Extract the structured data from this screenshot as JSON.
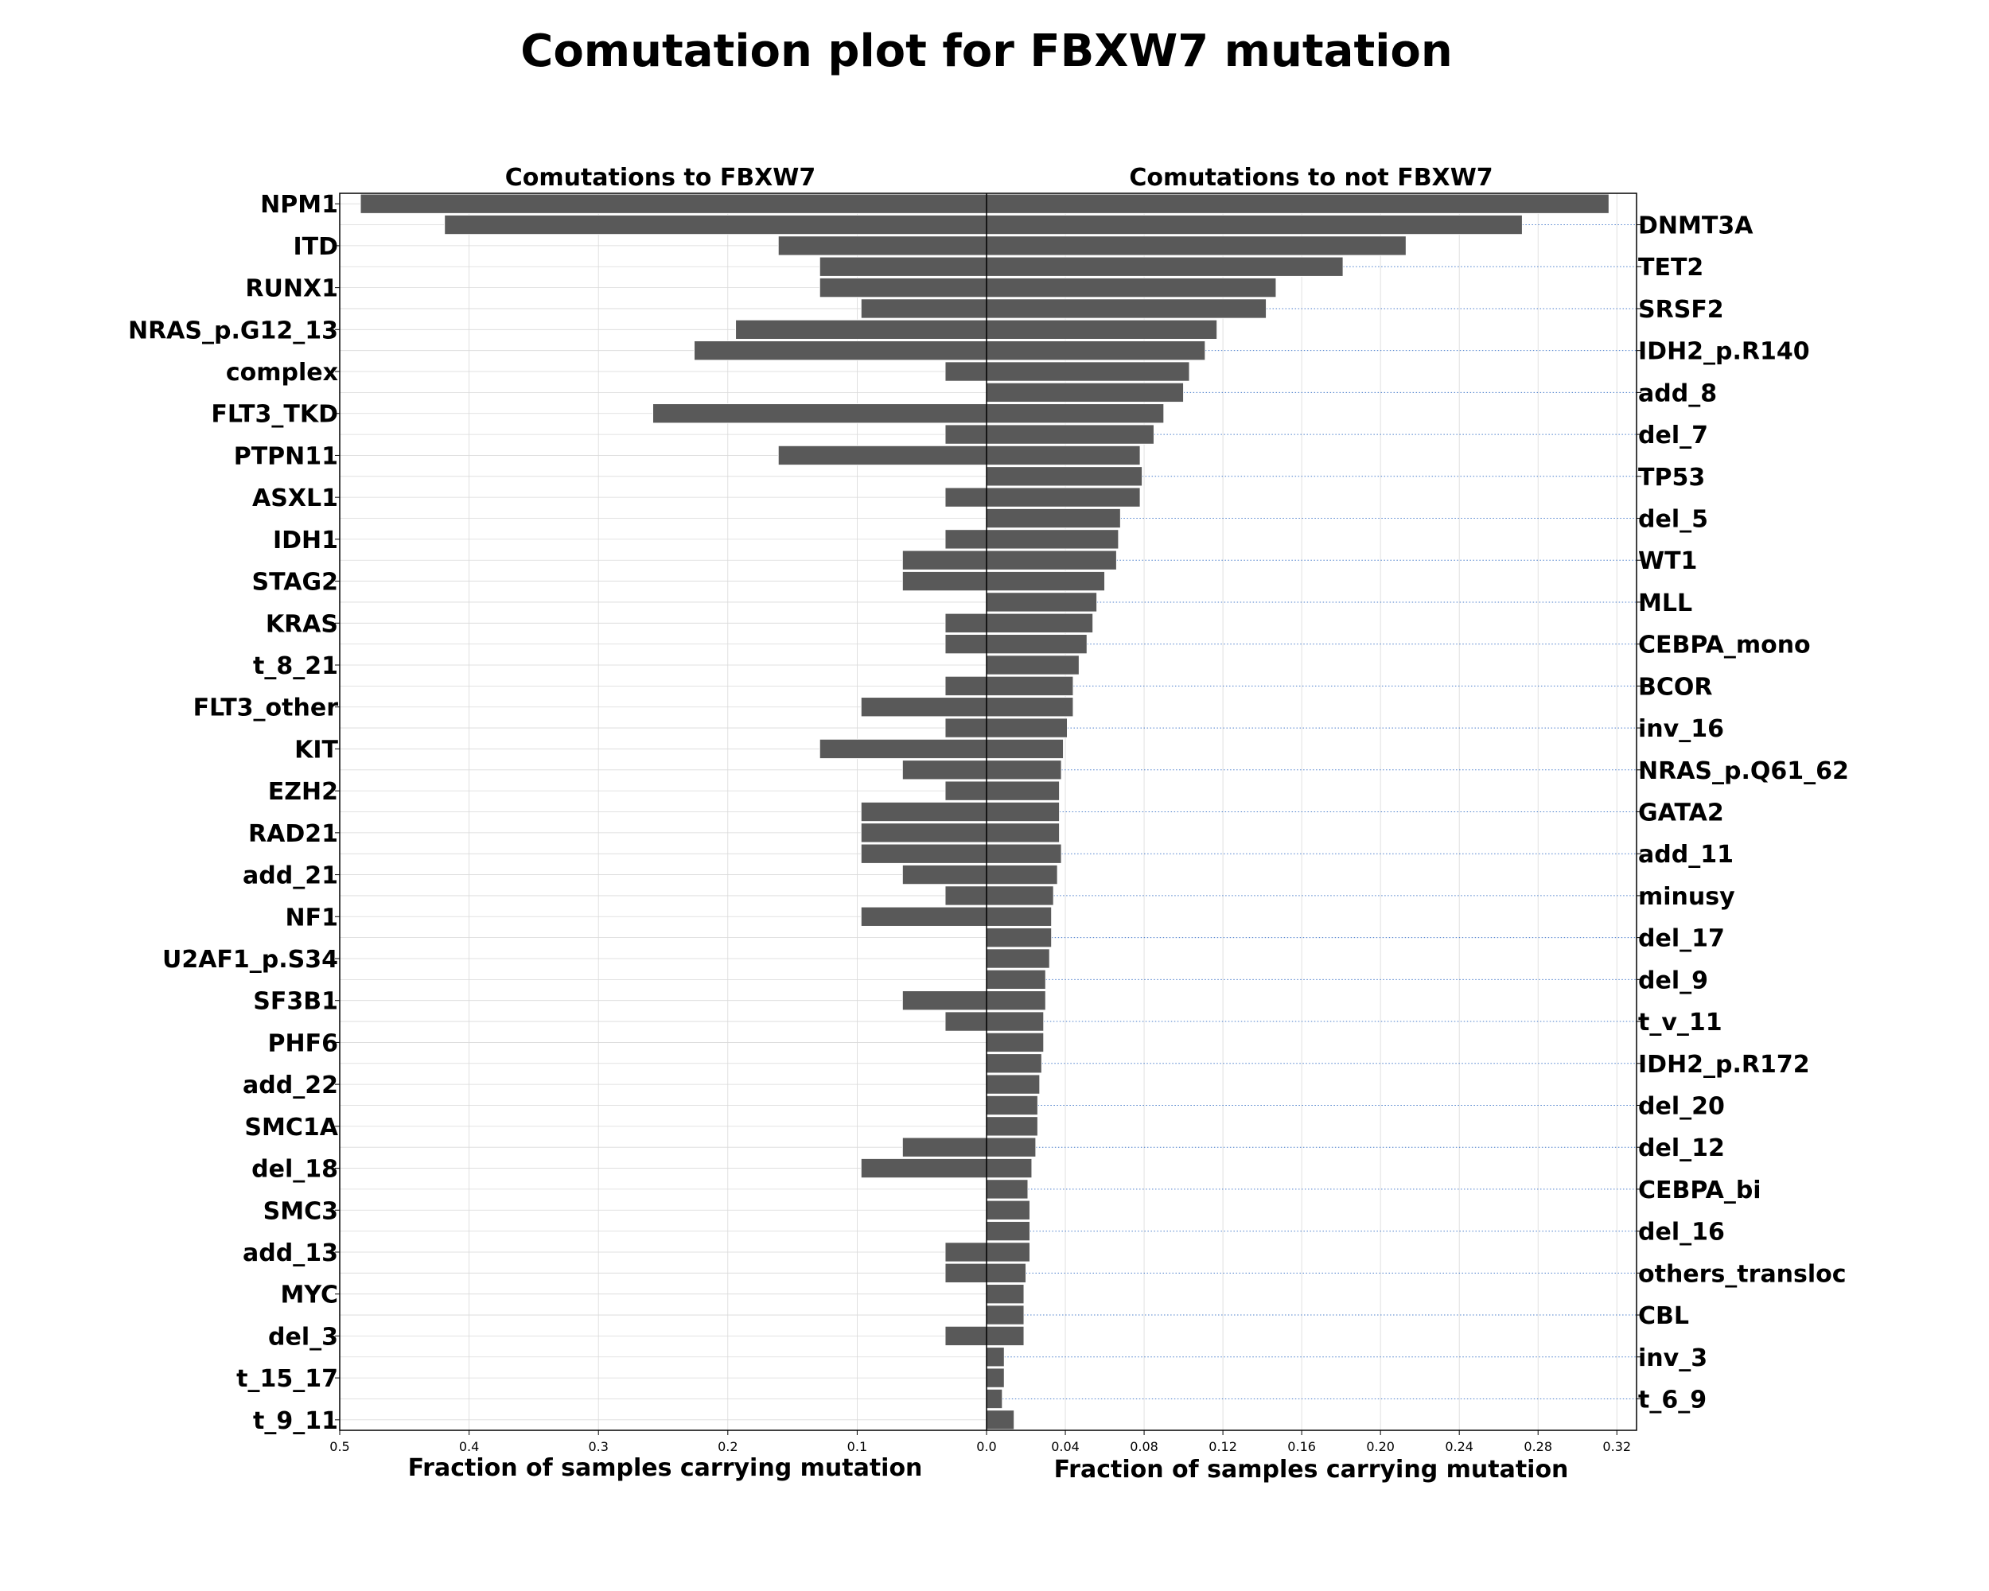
{
  "chart_data": {
    "type": "bar",
    "title": "Comutation plot for FBXW7 mutation",
    "left_panel": {
      "subtitle": "Comutations to FBXW7",
      "xlabel": "Fraction of samples carrying mutation",
      "xlim": [
        0,
        0.5
      ],
      "xticks": [
        "0.5",
        "0.4",
        "0.3",
        "0.2",
        "0.1",
        "0.0"
      ],
      "labels": [
        "NPM1",
        "ITD",
        "RUNX1",
        "NRAS_p.G12_13",
        "complex",
        "FLT3_TKD",
        "PTPN11",
        "ASXL1",
        "IDH1",
        "STAG2",
        "KRAS",
        "t_8_21",
        "FLT3_other",
        "KIT",
        "EZH2",
        "RAD21",
        "add_21",
        "NF1",
        "U2AF1_p.S34",
        "SF3B1",
        "PHF6",
        "add_22",
        "SMC1A",
        "del_18",
        "SMC3",
        "add_13",
        "MYC",
        "del_3",
        "t_15_17",
        "t_9_11"
      ]
    },
    "right_panel": {
      "subtitle": "Comutations to not FBXW7",
      "xlabel": "Fraction of samples carrying mutation",
      "xlim": [
        0,
        0.33
      ],
      "xticks": [
        "0.0",
        "0.04",
        "0.08",
        "0.12",
        "0.16",
        "0.20",
        "0.24",
        "0.28",
        "0.32"
      ],
      "labels": [
        "DNMT3A",
        "TET2",
        "SRSF2",
        "IDH2_p.R140",
        "add_8",
        "del_7",
        "TP53",
        "del_5",
        "WT1",
        "MLL",
        "CEBPA_mono",
        "BCOR",
        "inv_16",
        "NRAS_p.Q61_62",
        "GATA2",
        "add_11",
        "minusy",
        "del_17",
        "del_9",
        "t_v_11",
        "IDH2_p.R172",
        "del_20",
        "del_12",
        "CEBPA_bi",
        "del_16",
        "others_transloc",
        "CBL",
        "inv_3",
        "t_6_9"
      ]
    },
    "series": [
      {
        "name": "FBXW7",
        "values": [
          0.484,
          0.419,
          0.161,
          0.129,
          0.129,
          0.097,
          0.194,
          0.226,
          0.032,
          0,
          0.258,
          0.032,
          0.161,
          0,
          0.032,
          0,
          0.032,
          0.065,
          0.065,
          0,
          0.032,
          0.032,
          0,
          0.032,
          0.097,
          0.032,
          0.129,
          0.065,
          0.032,
          0.097,
          0.097,
          0.097,
          0.065,
          0.032,
          0.097,
          0,
          0,
          0,
          0.065,
          0.032,
          0,
          0,
          0,
          0,
          0,
          0.065,
          0.097,
          0,
          0,
          0,
          0.032,
          0.032,
          0,
          0,
          0.032,
          0,
          0,
          0,
          0
        ]
      },
      {
        "name": "not FBXW7",
        "values": [
          0.316,
          0.272,
          0.213,
          0.181,
          0.147,
          0.142,
          0.117,
          0.111,
          0.103,
          0.1,
          0.09,
          0.085,
          0.078,
          0.079,
          0.078,
          0.068,
          0.067,
          0.066,
          0.06,
          0.056,
          0.054,
          0.051,
          0.047,
          0.044,
          0.044,
          0.041,
          0.039,
          0.038,
          0.037,
          0.037,
          0.037,
          0.038,
          0.036,
          0.034,
          0.033,
          0.033,
          0.032,
          0.03,
          0.03,
          0.029,
          0.029,
          0.028,
          0.027,
          0.026,
          0.026,
          0.025,
          0.023,
          0.021,
          0.022,
          0.022,
          0.022,
          0.02,
          0.019,
          0.019,
          0.019,
          0.009,
          0.009,
          0.008,
          0.014
        ]
      }
    ]
  }
}
